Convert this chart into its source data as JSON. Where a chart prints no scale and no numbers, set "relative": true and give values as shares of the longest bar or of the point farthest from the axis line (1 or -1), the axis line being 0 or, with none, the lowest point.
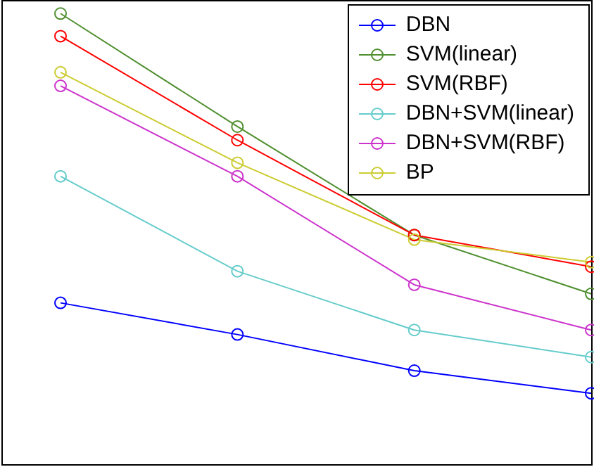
{
  "chart_data": {
    "type": "line",
    "relative": true,
    "categories": [
      null,
      null,
      null,
      null
    ],
    "marker": "circle",
    "legend": "top right",
    "tick_labels": false,
    "series": [
      {
        "name": "DBN",
        "color": "#0000ff",
        "values": [
          0.36,
          0.29,
          0.21,
          0.16
        ]
      },
      {
        "name": "SVM(linear)",
        "color": "#4f8f2f",
        "values": [
          1.0,
          0.75,
          0.51,
          0.38
        ]
      },
      {
        "name": "SVM(RBF)",
        "color": "#ff0000",
        "values": [
          0.95,
          0.72,
          0.51,
          0.44
        ]
      },
      {
        "name": "DBN+SVM(linear)",
        "color": "#66cccc",
        "values": [
          0.64,
          0.43,
          0.3,
          0.24
        ]
      },
      {
        "name": "DBN+SVM(RBF)",
        "color": "#cc33cc",
        "values": [
          0.84,
          0.64,
          0.4,
          0.3
        ]
      },
      {
        "name": "BP",
        "color": "#cccc33",
        "values": [
          0.87,
          0.67,
          0.5,
          0.45
        ]
      }
    ]
  }
}
